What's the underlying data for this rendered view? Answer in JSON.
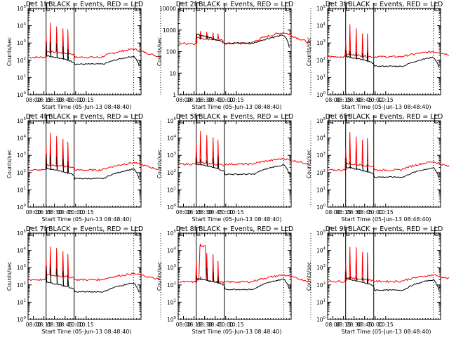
{
  "colors": {
    "events": "#000000",
    "lld": "#ff0000",
    "axis": "#000000",
    "background": "#ffffff"
  },
  "chart_data": [
    {
      "type": "line",
      "detector": "1f",
      "title": "Det 1f BLACK = Events, RED = LLD",
      "xlabel": "Start Time (05-Jun-13 08:48:40)",
      "ylabel": "Counts/sec",
      "x_ticks": [
        "08:00",
        "08:15",
        "08:30",
        "08:45",
        "10:00",
        "10:15"
      ],
      "y_scale": "log",
      "ylim": [
        1,
        100000
      ],
      "y_ticks": [
        "10^0",
        "10^1",
        "10^2",
        "10^3",
        "10^4",
        "10^5"
      ],
      "solid_vlines_min": [
        9,
        34
      ],
      "dotted_vlines_min": [
        87,
        111
      ],
      "lld_baseline": 150,
      "lld_level_mid": 320,
      "lld_peak_end": 450,
      "events_baseline": 60,
      "events_start": 25,
      "events_peak_end": 170,
      "spikes_lld": [
        3000,
        15000,
        9000,
        7000,
        6000
      ],
      "spikes_events": [
        1300,
        1100,
        900,
        600,
        450
      ]
    },
    {
      "type": "line",
      "detector": "2f",
      "title": "Det 2f BLACK = Events, RED = LLD",
      "xlabel": "Start Time (05-Jun-13 08:48:40)",
      "ylabel": "Counts/sec",
      "x_ticks": [
        "08:00",
        "08:15",
        "08:30",
        "08:45",
        "10:00",
        "10:15"
      ],
      "y_scale": "log",
      "ylim": [
        1,
        10000
      ],
      "y_ticks": [
        "1",
        "10",
        "100",
        "1000",
        "10000"
      ],
      "solid_vlines_min": [
        9,
        34
      ],
      "dotted_vlines_min": [
        87,
        111
      ],
      "lld_baseline": 240,
      "lld_level_mid": 450,
      "lld_peak_end": 780,
      "events_baseline": 250,
      "events_start": 130,
      "events_peak_end": 580,
      "spikes_lld": [
        650,
        900,
        820,
        760,
        700
      ],
      "spikes_events": [
        380,
        380,
        360,
        350,
        340
      ]
    },
    {
      "type": "line",
      "detector": "3f",
      "title": "Det 3f BLACK = Events, RED = LLD",
      "xlabel": "Start Time (05-Jun-13 08:48:40)",
      "ylabel": "Counts/sec",
      "x_ticks": [
        "08:00",
        "08:15",
        "08:30",
        "08:45",
        "10:00",
        "10:15"
      ],
      "y_scale": "log",
      "ylim": [
        1,
        100000
      ],
      "y_ticks": [
        "10^0",
        "10^1",
        "10^2",
        "10^3",
        "10^4",
        "10^5"
      ],
      "solid_vlines_min": [
        9,
        34
      ],
      "dotted_vlines_min": [
        87,
        111
      ],
      "lld_baseline": 160,
      "lld_level_mid": 220,
      "lld_peak_end": 320,
      "events_baseline": 45,
      "events_start": 25,
      "events_peak_end": 150,
      "spikes_lld": [
        1300,
        12000,
        7000,
        3500,
        3500
      ],
      "spikes_events": [
        400,
        350,
        270,
        260,
        280
      ]
    },
    {
      "type": "line",
      "detector": "4f",
      "title": "Det 4f BLACK = Events, RED = LLD",
      "xlabel": "Start Time (05-Jun-13 08:48:40)",
      "ylabel": "Counts/sec",
      "x_ticks": [
        "08:00",
        "08:15",
        "08:30",
        "08:45",
        "10:00",
        "10:15"
      ],
      "y_scale": "log",
      "ylim": [
        1,
        100000
      ],
      "y_ticks": [
        "10^0",
        "10^1",
        "10^2",
        "10^3",
        "10^4",
        "10^5"
      ],
      "solid_vlines_min": [
        9,
        34
      ],
      "dotted_vlines_min": [
        87,
        111
      ],
      "lld_baseline": 140,
      "lld_level_mid": 280,
      "lld_peak_end": 380,
      "events_baseline": 45,
      "events_start": 25,
      "events_peak_end": 160,
      "spikes_lld": [
        3500,
        20000,
        13000,
        9000,
        6000
      ],
      "spikes_events": [
        1200,
        1000,
        800,
        600,
        450
      ]
    },
    {
      "type": "line",
      "detector": "5f",
      "title": "Det 5f BLACK = Events, RED = LLD",
      "xlabel": "Start Time (05-Jun-13 08:48:40)",
      "ylabel": "Counts/sec",
      "x_ticks": [
        "08:00",
        "08:15",
        "08:30",
        "08:45",
        "10:00",
        "10:15"
      ],
      "y_scale": "log",
      "ylim": [
        1,
        100000
      ],
      "y_ticks": [
        "10^0",
        "10^1",
        "10^2",
        "10^3",
        "10^4",
        "10^5"
      ],
      "solid_vlines_min": [
        9,
        34
      ],
      "dotted_vlines_min": [
        87,
        111
      ],
      "lld_baseline": 310,
      "lld_level_mid": 380,
      "lld_peak_end": 640,
      "events_baseline": 80,
      "events_start": 50,
      "events_peak_end": 280,
      "spikes_lld": [
        5000,
        25000,
        15000,
        11000,
        8000
      ],
      "spikes_events": [
        700,
        600,
        500,
        700,
        900
      ]
    },
    {
      "type": "line",
      "detector": "6f",
      "title": "Det 6f BLACK = Events, RED = LLD",
      "xlabel": "Start Time (05-Jun-13 08:48:40)",
      "ylabel": "Counts/sec",
      "x_ticks": [
        "08:00",
        "08:15",
        "08:30",
        "08:45",
        "10:00",
        "10:15"
      ],
      "y_scale": "log",
      "ylim": [
        1,
        100000
      ],
      "y_ticks": [
        "10^0",
        "10^1",
        "10^2",
        "10^3",
        "10^4",
        "10^5"
      ],
      "solid_vlines_min": [
        9,
        34
      ],
      "dotted_vlines_min": [
        87,
        111
      ],
      "lld_baseline": 140,
      "lld_level_mid": 330,
      "lld_peak_end": 430,
      "events_baseline": 55,
      "events_start": 25,
      "events_peak_end": 190,
      "spikes_lld": [
        2500,
        22000,
        12000,
        8000,
        10000
      ],
      "spikes_events": [
        700,
        400,
        300,
        280,
        300
      ]
    },
    {
      "type": "line",
      "detector": "7f",
      "title": "Det 7f BLACK = Events, RED = LLD",
      "xlabel": "Start Time (05-Jun-13 08:48:40)",
      "ylabel": "Counts/sec",
      "x_ticks": [
        "08:00",
        "08:15",
        "08:30",
        "08:45",
        "10:00",
        "10:15"
      ],
      "y_scale": "log",
      "ylim": [
        1,
        100000
      ],
      "y_ticks": [
        "10^0",
        "10^1",
        "10^2",
        "10^3",
        "10^4",
        "10^5"
      ],
      "solid_vlines_min": [
        9,
        34
      ],
      "dotted_vlines_min": [
        87,
        111
      ],
      "lld_baseline": 200,
      "lld_level_mid": 380,
      "lld_peak_end": 450,
      "events_baseline": 40,
      "events_start": 20,
      "events_peak_end": 130,
      "spikes_lld": [
        3000,
        16000,
        14000,
        9000,
        6000
      ],
      "spikes_events": [
        1300,
        1100,
        900,
        600,
        400
      ]
    },
    {
      "type": "line",
      "detector": "8f",
      "title": "Det 8f BLACK = Events, RED = LLD",
      "xlabel": "Start Time (05-Jun-13 08:48:40)",
      "ylabel": "Counts/sec",
      "x_ticks": [
        "08:00",
        "08:15",
        "08:30",
        "08:45",
        "10:00",
        "10:15"
      ],
      "y_scale": "log",
      "ylim": [
        1,
        100000
      ],
      "y_ticks": [
        "10^0",
        "10^1",
        "10^2",
        "10^3",
        "10^4",
        "10^5"
      ],
      "solid_vlines_min": [
        9,
        34
      ],
      "dotted_vlines_min": [
        87,
        111
      ],
      "lld_baseline": 150,
      "lld_level_mid": 200,
      "lld_peak_end": 380,
      "events_baseline": 55,
      "events_start": 30,
      "events_peak_end": 220,
      "plateau_lld": 17000,
      "spikes_lld": [
        3000,
        23000,
        7000,
        6000,
        2500
      ],
      "spikes_events": [
        300,
        300,
        1000,
        600,
        300
      ]
    },
    {
      "type": "line",
      "detector": "9f",
      "title": "Det 9f BLACK = Events, RED = LLD",
      "xlabel": "Start Time (05-Jun-13 08:48:40)",
      "ylabel": "Counts/sec",
      "x_ticks": [
        "08:00",
        "08:15",
        "08:30",
        "08:45",
        "10:00",
        "10:15"
      ],
      "y_scale": "log",
      "ylim": [
        1,
        100000
      ],
      "y_ticks": [
        "10^0",
        "10^1",
        "10^2",
        "10^3",
        "10^4",
        "10^5"
      ],
      "solid_vlines_min": [
        9,
        34
      ],
      "dotted_vlines_min": [
        87,
        111
      ],
      "lld_baseline": 160,
      "lld_level_mid": 260,
      "lld_peak_end": 380,
      "events_baseline": 50,
      "events_start": 25,
      "events_peak_end": 200,
      "spikes_lld": [
        2000,
        16000,
        15000,
        8000,
        7500
      ],
      "spikes_events": [
        600,
        300,
        280,
        260,
        250
      ]
    }
  ]
}
